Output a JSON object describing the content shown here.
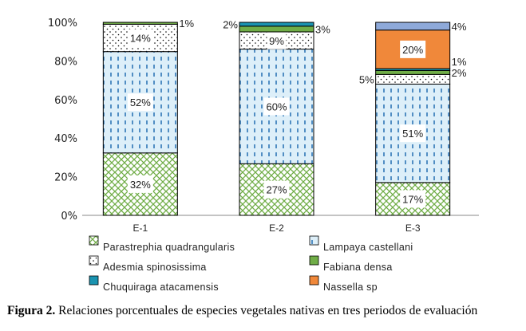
{
  "chart_data": {
    "type": "bar",
    "stacked": "percent",
    "categories": [
      "E-1",
      "E-2",
      "E-3"
    ],
    "ylim": [
      0,
      100
    ],
    "yticks": [
      "0%",
      "20%",
      "40%",
      "60%",
      "80%",
      "100%"
    ],
    "grid": false,
    "legend_position": "bottom",
    "series": [
      {
        "name": "Parastrephia quadrangularis",
        "pattern": "crosshatch",
        "color": "#70AD47",
        "values": [
          32,
          27,
          17
        ],
        "labels": [
          "32%",
          "27%",
          "17%"
        ],
        "label_pos": [
          "inside",
          "inside",
          "inside"
        ]
      },
      {
        "name": "Lampaya castellani",
        "pattern": "dashes",
        "color": "#2E75B6",
        "values": [
          52,
          60,
          51
        ],
        "labels": [
          "52%",
          "60%",
          "51%"
        ],
        "label_pos": [
          "inside",
          "inside",
          "inside"
        ]
      },
      {
        "name": "Adesmia spinosissima",
        "pattern": "dots",
        "color": "#000000",
        "values": [
          14,
          9,
          5
        ],
        "labels": [
          "14%",
          "9%",
          "5%"
        ],
        "label_pos": [
          "inside",
          "inside",
          "left"
        ]
      },
      {
        "name": "Fabiana densa",
        "pattern": "solid",
        "color": "#70AD47",
        "values": [
          1,
          3,
          2
        ],
        "labels": [
          "1%",
          "3%",
          "2%"
        ],
        "label_pos": [
          "right",
          "right",
          "right"
        ]
      },
      {
        "name": "Chuquiraga atacamensis",
        "pattern": "solid",
        "color": "#1A93B0",
        "values": [
          0,
          2,
          1
        ],
        "labels": [
          "",
          "2%",
          "1%"
        ],
        "label_pos": [
          "none",
          "left",
          "right"
        ]
      },
      {
        "name": "Nassella sp",
        "pattern": "solid",
        "color": "#F0883A",
        "values": [
          0,
          0,
          20
        ],
        "labels": [
          "",
          "",
          "20%"
        ],
        "label_pos": [
          "none",
          "none",
          "inside"
        ]
      },
      {
        "name": "",
        "pattern": "solid",
        "color": "#8EA9D9",
        "values": [
          0,
          0,
          4
        ],
        "labels": [
          "",
          "",
          "4%"
        ],
        "label_pos": [
          "none",
          "none",
          "right"
        ]
      }
    ]
  },
  "caption": {
    "label": "Figura 2.",
    "text": " Relaciones porcentuales de especies vegetales nativas en tres periodos de evaluación"
  }
}
